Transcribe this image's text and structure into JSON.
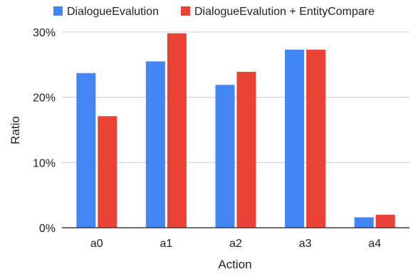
{
  "chart_data": {
    "type": "bar",
    "title": "",
    "xlabel": "Action",
    "ylabel": "Ratio",
    "categories": [
      "a0",
      "a1",
      "a2",
      "a3",
      "a4"
    ],
    "series": [
      {
        "name": "DialogueEvalution",
        "color": "#4285f4",
        "values": [
          23.7,
          25.5,
          21.9,
          27.3,
          1.6
        ]
      },
      {
        "name": "DialogueEvalution + EntityCompare",
        "color": "#ea4335",
        "values": [
          17.1,
          29.8,
          23.9,
          27.3,
          2.0
        ]
      }
    ],
    "ylim": [
      0,
      30
    ],
    "yticks": [
      0,
      10,
      20,
      30
    ],
    "ytick_labels": [
      "0%",
      "10%",
      "20%",
      "30%"
    ],
    "grid": true,
    "legend_position": "top"
  }
}
